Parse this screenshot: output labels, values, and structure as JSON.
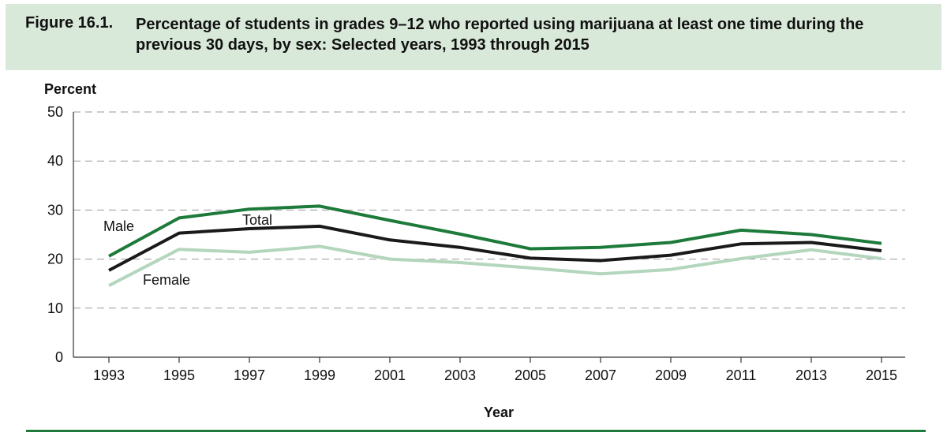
{
  "figure": {
    "number": "Figure 16.1.",
    "title": "Percentage of students in grades 9–12 who reported using marijuana at least one time during the previous 30 days, by sex: Selected years, 1993 through 2015"
  },
  "colors": {
    "title_background": "#d9e9d9",
    "male": "#1d7a3a",
    "total": "#1a1a1a",
    "female": "#b3d6bd",
    "rule": "#1d7a3a"
  },
  "chart_data": {
    "type": "line",
    "title": "Percentage of students in grades 9–12 who reported using marijuana at least one time during the previous 30 days, by sex: Selected years, 1993 through 2015",
    "xlabel": "Year",
    "ylabel": "Percent",
    "ylim": [
      0,
      50
    ],
    "yticks": [
      0,
      10,
      20,
      30,
      40,
      50
    ],
    "grid": true,
    "categories": [
      "1993",
      "1995",
      "1997",
      "1999",
      "2001",
      "2003",
      "2005",
      "2007",
      "2009",
      "2011",
      "2013",
      "2015"
    ],
    "series": [
      {
        "name": "Male",
        "color": "#1d7a3a",
        "values": [
          20.6,
          28.4,
          30.2,
          30.8,
          27.9,
          25.1,
          22.1,
          22.4,
          23.4,
          25.9,
          25.0,
          23.2
        ]
      },
      {
        "name": "Total",
        "color": "#1a1a1a",
        "values": [
          17.7,
          25.3,
          26.2,
          26.7,
          23.9,
          22.4,
          20.2,
          19.7,
          20.8,
          23.1,
          23.4,
          21.7
        ]
      },
      {
        "name": "Female",
        "color": "#b3d6bd",
        "values": [
          14.6,
          22.0,
          21.4,
          22.6,
          20.0,
          19.3,
          18.2,
          17.0,
          17.9,
          20.1,
          21.9,
          20.1
        ]
      }
    ]
  }
}
